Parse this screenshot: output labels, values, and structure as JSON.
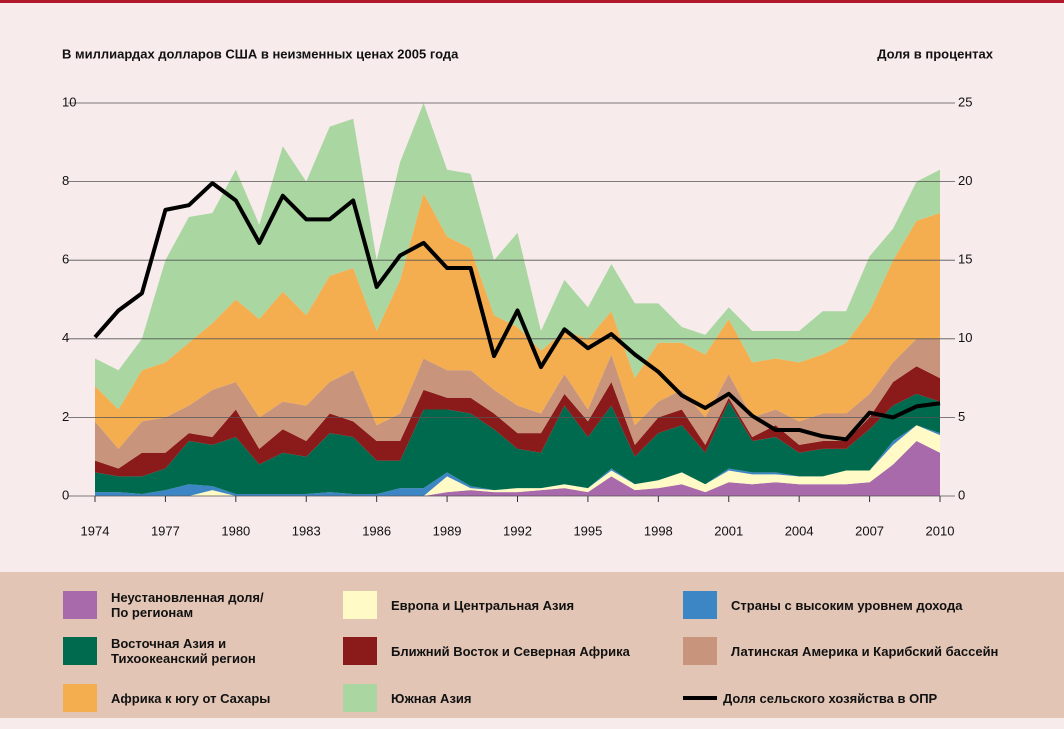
{
  "chart_data": {
    "type": "area",
    "y_label": "В миллиардах долларов США в неизменных ценах 2005 года",
    "y2_label": "Доля в процентах",
    "x": [
      1974,
      1975,
      1976,
      1977,
      1978,
      1979,
      1980,
      1981,
      1982,
      1983,
      1984,
      1985,
      1986,
      1987,
      1988,
      1989,
      1990,
      1991,
      1992,
      1993,
      1994,
      1995,
      1996,
      1997,
      1998,
      1999,
      2000,
      2001,
      2002,
      2003,
      2004,
      2005,
      2006,
      2007,
      2008,
      2009,
      2010
    ],
    "xlim": [
      1974,
      2010
    ],
    "xticks": [
      1974,
      1977,
      1980,
      1983,
      1986,
      1989,
      1992,
      1995,
      1998,
      2001,
      2004,
      2007,
      2010
    ],
    "ylim": [
      0,
      10
    ],
    "yticks": [
      0,
      2,
      4,
      6,
      8,
      10
    ],
    "y2lim": [
      0,
      25
    ],
    "y2ticks": [
      0,
      5,
      10,
      15,
      20,
      25
    ],
    "grid": true,
    "series": [
      {
        "name": "Неустановленная доля/\nПо регионам",
        "color": "#a86aab",
        "values": [
          0,
          0,
          0,
          0,
          0,
          0,
          0,
          0,
          0,
          0,
          0,
          0,
          0,
          0,
          0,
          0.1,
          0.15,
          0.1,
          0.1,
          0.15,
          0.2,
          0.1,
          0.5,
          0.15,
          0.2,
          0.3,
          0.1,
          0.35,
          0.3,
          0.35,
          0.3,
          0.3,
          0.3,
          0.35,
          0.8,
          1.4,
          1.1
        ]
      },
      {
        "name": "Европа и Центральная Азия",
        "color": "#fffac6",
        "values": [
          0,
          0,
          0,
          0,
          0,
          0.15,
          0,
          0,
          0,
          0,
          0,
          0,
          0,
          0,
          0,
          0.4,
          0.05,
          0.05,
          0.1,
          0.05,
          0.1,
          0.1,
          0.15,
          0.15,
          0.2,
          0.3,
          0.2,
          0.3,
          0.25,
          0.2,
          0.2,
          0.2,
          0.35,
          0.3,
          0.5,
          0.4,
          0.45
        ]
      },
      {
        "name": "Страны с высоким уровнем дохода",
        "color": "#3d86c5",
        "values": [
          0.1,
          0.1,
          0.05,
          0.15,
          0.3,
          0.1,
          0.05,
          0.05,
          0.05,
          0.05,
          0.1,
          0.05,
          0.05,
          0.2,
          0.2,
          0.1,
          0.05,
          0,
          0,
          0,
          0,
          0,
          0.05,
          0,
          0,
          0,
          0,
          0.05,
          0.05,
          0.05,
          0,
          0,
          0,
          0,
          0.1,
          0,
          0.05
        ]
      },
      {
        "name": "Восточная Азия и\nТихоокеанский регион",
        "color": "#006a4e",
        "values": [
          0.5,
          0.4,
          0.45,
          0.55,
          1.1,
          1.05,
          1.45,
          0.75,
          1.05,
          0.95,
          1.5,
          1.45,
          0.85,
          0.7,
          2.0,
          1.6,
          1.85,
          1.55,
          1.0,
          0.9,
          2.0,
          1.3,
          1.6,
          0.7,
          1.2,
          1.2,
          0.8,
          1.7,
          0.8,
          0.9,
          0.6,
          0.7,
          0.55,
          1.05,
          0.9,
          0.8,
          0.8
        ]
      },
      {
        "name": "Ближний Восток и Северная Африка",
        "color": "#8b1a1a",
        "values": [
          0.3,
          0.2,
          0.6,
          0.4,
          0.2,
          0.2,
          0.7,
          0.4,
          0.6,
          0.4,
          0.5,
          0.4,
          0.5,
          0.5,
          0.5,
          0.3,
          0.4,
          0.4,
          0.4,
          0.5,
          0.3,
          0.4,
          0.6,
          0.3,
          0.4,
          0.4,
          0.2,
          0.1,
          0.1,
          0.3,
          0.2,
          0.2,
          0.2,
          0.3,
          0.6,
          0.7,
          0.6
        ]
      },
      {
        "name": "Латинская Америка и Карибский бассейн",
        "color": "#c8957c",
        "values": [
          1.0,
          0.5,
          0.8,
          0.9,
          0.7,
          1.2,
          0.7,
          0.8,
          0.7,
          0.9,
          0.8,
          1.3,
          0.4,
          0.7,
          0.8,
          0.7,
          0.7,
          0.6,
          0.7,
          0.5,
          0.5,
          0.3,
          0.7,
          0.5,
          0.4,
          0.5,
          0.7,
          0.6,
          0.5,
          0.4,
          0.6,
          0.7,
          0.7,
          0.6,
          0.5,
          0.7,
          1.0
        ]
      },
      {
        "name": "Африка к югу от Сахары",
        "color": "#f5ae4f",
        "values": [
          0.9,
          1.0,
          1.3,
          1.4,
          1.6,
          1.7,
          2.1,
          2.5,
          2.8,
          2.3,
          2.7,
          2.6,
          2.4,
          3.4,
          4.2,
          3.4,
          3.1,
          1.9,
          2.0,
          1.6,
          1.1,
          1.8,
          1.1,
          1.2,
          1.5,
          1.2,
          1.6,
          1.4,
          1.4,
          1.3,
          1.5,
          1.5,
          1.8,
          2.1,
          2.6,
          3.0,
          3.2
        ]
      },
      {
        "name": "Южная Азия",
        "color": "#a9d6a1",
        "values": [
          0.7,
          1.0,
          0.8,
          2.6,
          3.2,
          2.8,
          3.3,
          2.4,
          3.7,
          3.4,
          3.8,
          3.8,
          1.8,
          3.0,
          2.3,
          1.7,
          1.9,
          1.4,
          2.4,
          0.5,
          1.3,
          0.8,
          1.2,
          1.9,
          1.0,
          0.4,
          0.5,
          0.3,
          0.8,
          0.7,
          0.8,
          1.1,
          0.8,
          1.4,
          0.8,
          1.0,
          1.1
        ]
      },
      {
        "name": "Доля сельского хозяйства в ОПР",
        "color": "#000000",
        "axis": "y2",
        "values": [
          10.1,
          11.8,
          12.9,
          18.2,
          18.5,
          19.9,
          18.8,
          16.1,
          19.1,
          17.6,
          17.6,
          18.8,
          13.3,
          15.3,
          16.1,
          14.5,
          14.5,
          8.9,
          11.8,
          8.2,
          10.6,
          9.4,
          10.3,
          9.0,
          7.9,
          6.4,
          5.6,
          6.5,
          5.1,
          4.2,
          4.2,
          3.8,
          3.6,
          5.3,
          5.0,
          5.7,
          5.9
        ]
      }
    ]
  }
}
